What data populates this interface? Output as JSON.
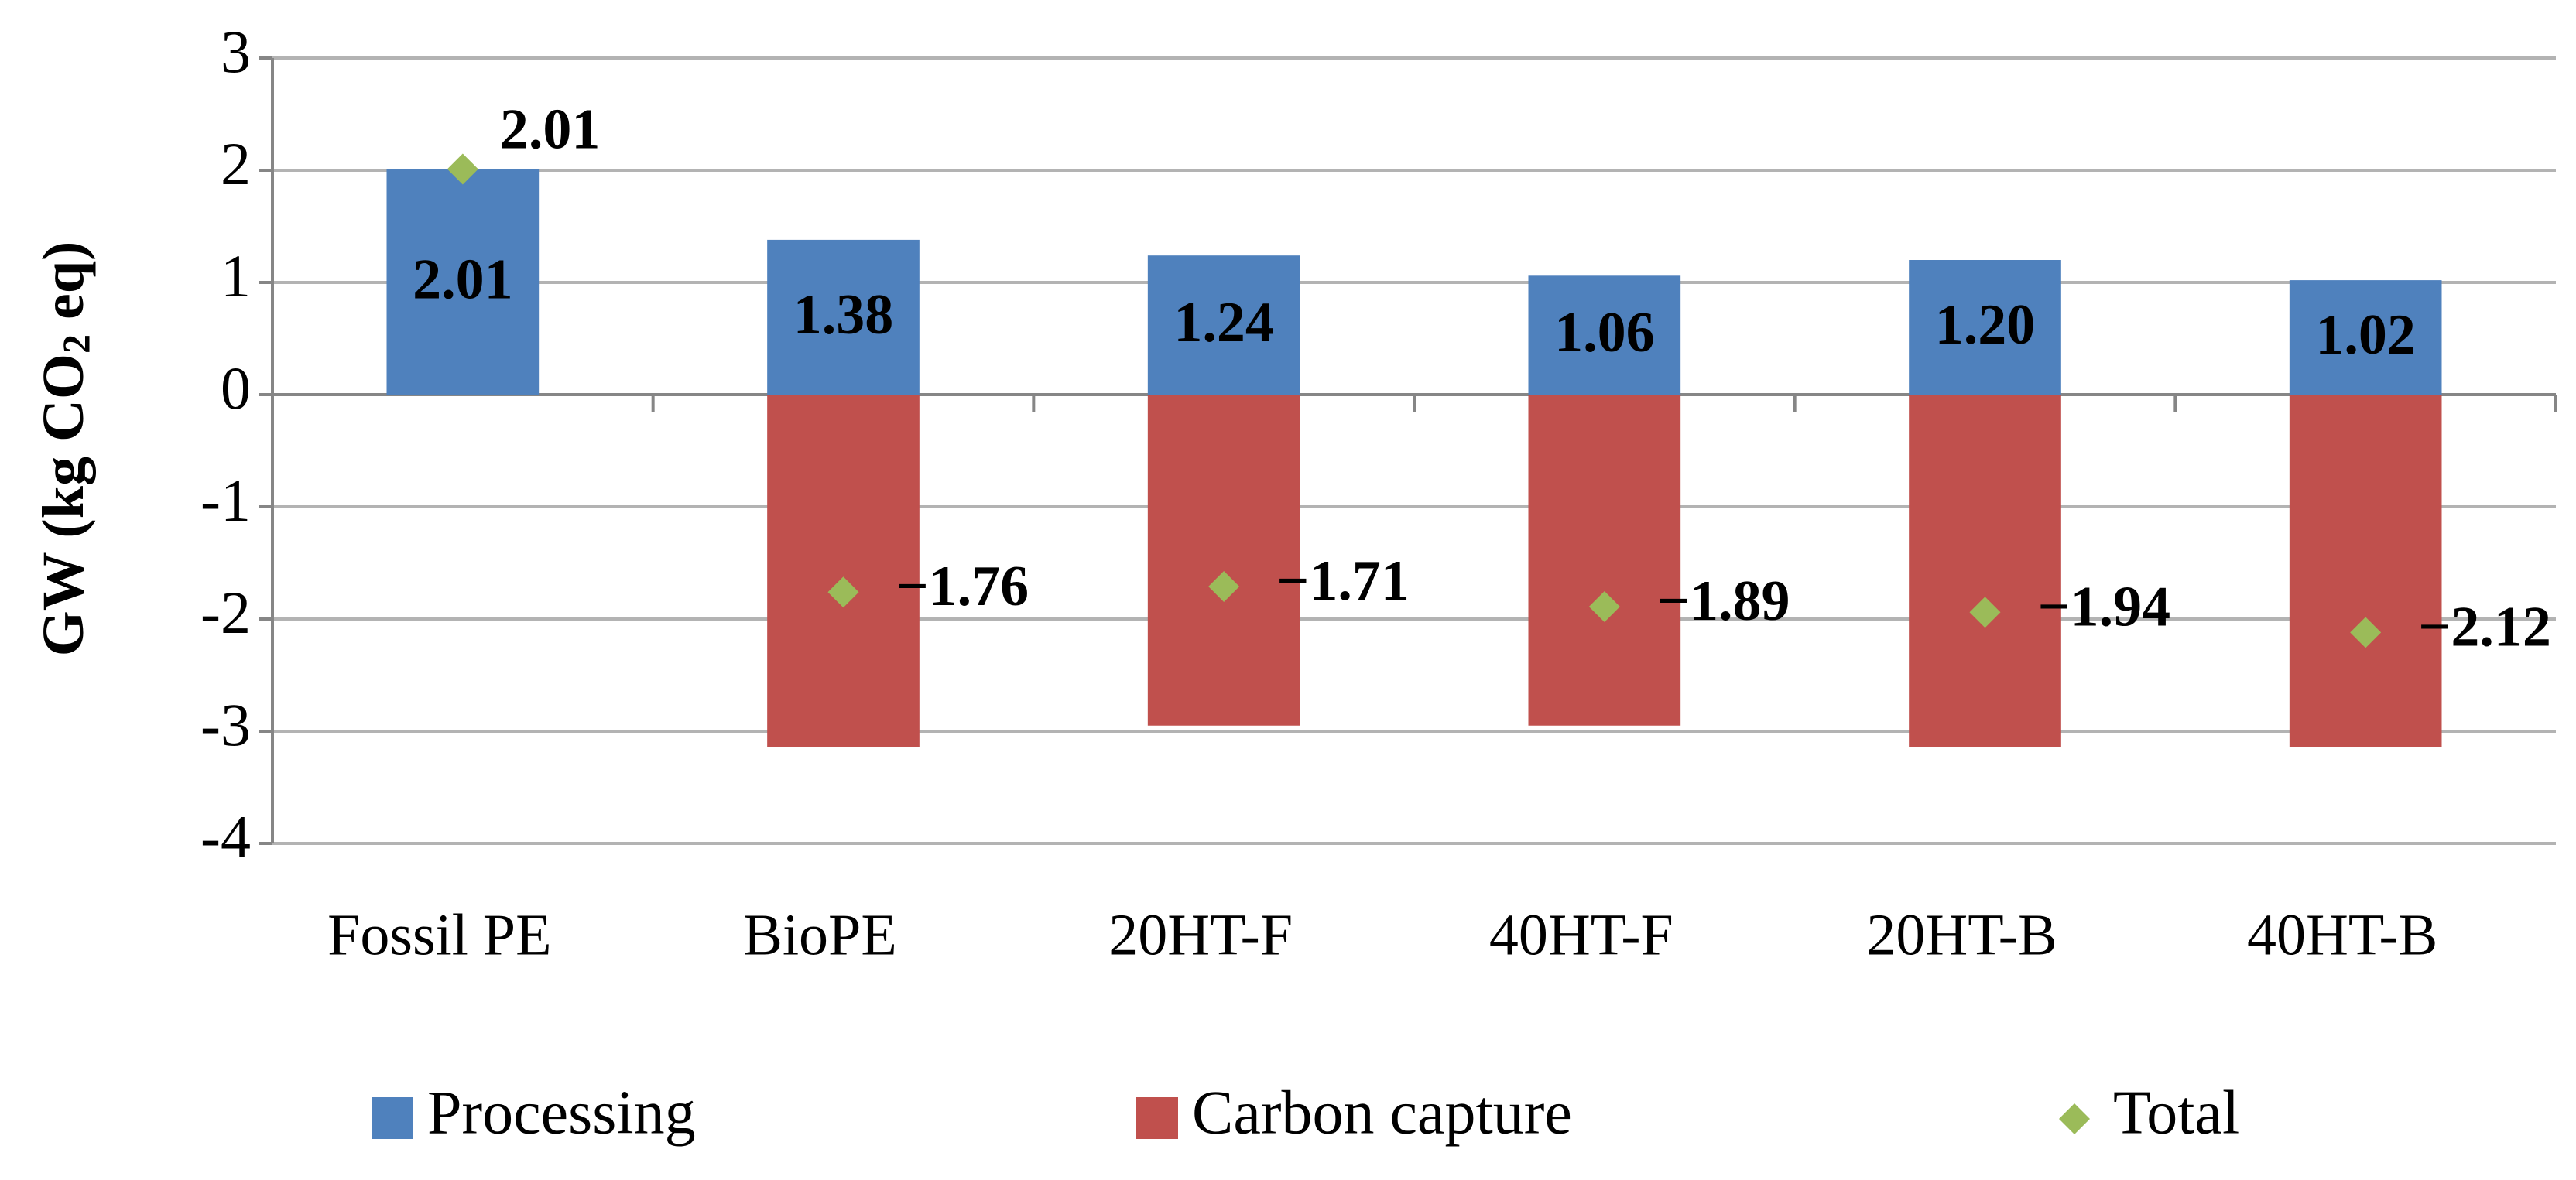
{
  "chart_data": {
    "type": "bar",
    "y_label": [
      "GW (kg CO",
      "2",
      " eq)"
    ],
    "categories": [
      "Fossil PE",
      "BioPE",
      "20HT-F",
      "40HT-F",
      "20HT-B",
      "40HT-B"
    ],
    "series": [
      {
        "name": "Processing",
        "color": "#4f81bd",
        "values": [
          2.01,
          1.38,
          1.24,
          1.06,
          1.2,
          1.02
        ],
        "value_labels": [
          "2.01",
          "1.38",
          "1.24",
          "1.06",
          "1.20",
          "1.02"
        ]
      },
      {
        "name": "Carbon capture",
        "color": "#c0504d",
        "values": [
          null,
          -3.14,
          -2.95,
          -2.95,
          -3.14,
          -3.14
        ]
      },
      {
        "name": "Total",
        "color": "#9bbb59",
        "type": "scatter",
        "values": [
          2.01,
          -1.76,
          -1.71,
          -1.89,
          -1.94,
          -2.12
        ],
        "value_labels": [
          "2.01",
          "−1.76",
          "−1.71",
          "−1.89",
          "−1.94",
          "−2.12"
        ]
      }
    ],
    "ylim": [
      -4,
      3
    ],
    "yticks": [
      -4,
      -3,
      -2,
      -1,
      0,
      1,
      2,
      3
    ],
    "grid": true,
    "legend": "bottom"
  }
}
